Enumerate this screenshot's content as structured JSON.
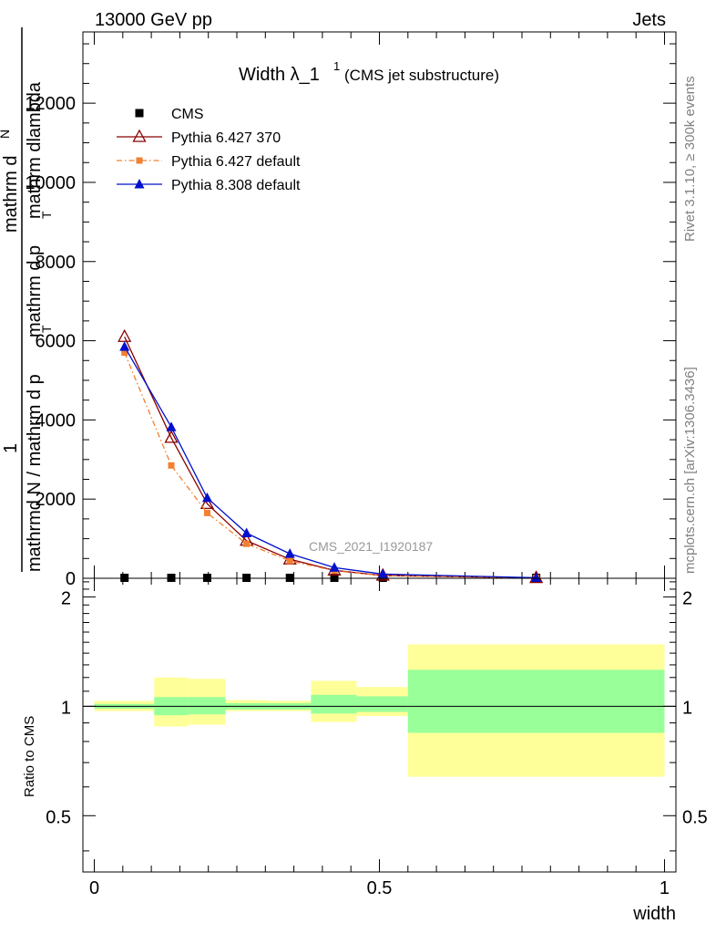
{
  "header": {
    "left": "13000 GeV pp",
    "right": "Jets"
  },
  "side_labels": {
    "rivet": "Rivet 3.1.10, ≥ 300k events",
    "mcplots": "mcplots.cern.ch [arXiv:1306.3436]"
  },
  "watermark": "CMS_2021_I1920187",
  "main_ylabel": {
    "numerator_parts": [
      "1",
      "mathrm d",
      "N"
    ],
    "denominator": "mathrmd N / mathrm d p_T mathrm d p_T mathrm dlambda",
    "lines": [
      "1",
      "mathrm d",
      "N",
      "mathrmd N / mathrm d p",
      "T",
      "mathrm d p",
      "T",
      "mathrm dlambda"
    ]
  },
  "ratio_ylabel": "Ratio to CMS",
  "chart_data": [
    {
      "type": "line",
      "title": "Width λ_1",
      "title_sup": "1",
      "subtitle": "(CMS jet substructure)",
      "xlabel": "width",
      "xlim": [
        -0.02,
        1.02
      ],
      "ylim": [
        0,
        13800
      ],
      "yticks": [
        0,
        2000,
        4000,
        6000,
        8000,
        10000,
        12000
      ],
      "ytick_labels": [
        "0",
        "2000",
        "4000",
        "6000",
        "8000",
        "10000",
        "12000"
      ],
      "legend": [
        {
          "name": "CMS",
          "color": "#000000",
          "marker": "square",
          "dash": "none"
        },
        {
          "name": "Pythia 6.427 370",
          "color": "#8b0000",
          "marker": "open-triangle",
          "dash": "none"
        },
        {
          "name": "Pythia 6.427 default",
          "color": "#f28030",
          "marker": "small-square",
          "dash": "dashdot"
        },
        {
          "name": "Pythia 8.308 default",
          "color": "#0010cc",
          "marker": "triangle",
          "dash": "none"
        }
      ],
      "series": [
        {
          "name": "CMS",
          "x": [
            0.053,
            0.135,
            0.198,
            0.267,
            0.343,
            0.421,
            0.506,
            0.775
          ],
          "y": [
            0,
            0,
            0,
            0,
            0,
            0,
            0,
            0
          ]
        },
        {
          "name": "Pythia 6.427 370",
          "x": [
            0.053,
            0.135,
            0.198,
            0.267,
            0.343,
            0.421,
            0.506,
            0.775
          ],
          "y": [
            6100,
            3550,
            1880,
            950,
            480,
            200,
            70,
            10
          ]
        },
        {
          "name": "Pythia 6.427 default",
          "x": [
            0.053,
            0.135,
            0.198,
            0.267,
            0.343,
            0.421,
            0.506,
            0.775
          ],
          "y": [
            5700,
            2850,
            1650,
            870,
            440,
            190,
            65,
            8
          ]
        },
        {
          "name": "Pythia 8.308 default",
          "x": [
            0.053,
            0.135,
            0.198,
            0.267,
            0.343,
            0.421,
            0.506,
            0.775
          ],
          "y": [
            5850,
            3820,
            2030,
            1140,
            620,
            270,
            105,
            15
          ]
        }
      ]
    },
    {
      "type": "area",
      "title": "Ratio to CMS",
      "xlabel": "width",
      "xlim": [
        -0.02,
        1.02
      ],
      "ylim": [
        0.35,
        2.25
      ],
      "yticks": [
        0.5,
        1,
        2
      ],
      "ytick_labels": [
        "0.5",
        "1",
        "2"
      ],
      "xticks": [
        0,
        0.5,
        1
      ],
      "xtick_labels": [
        "0",
        "0.5",
        "1"
      ],
      "bins": [
        {
          "lo": 0.0,
          "hi": 0.105,
          "yellow": [
            0.97,
            1.035
          ],
          "green": [
            0.985,
            1.015
          ]
        },
        {
          "lo": 0.105,
          "hi": 0.165,
          "yellow": [
            0.88,
            1.2
          ],
          "green": [
            0.945,
            1.06
          ]
        },
        {
          "lo": 0.165,
          "hi": 0.23,
          "yellow": [
            0.89,
            1.19
          ],
          "green": [
            0.95,
            1.06
          ]
        },
        {
          "lo": 0.23,
          "hi": 0.305,
          "yellow": [
            0.97,
            1.04
          ],
          "green": [
            0.98,
            1.02
          ]
        },
        {
          "lo": 0.305,
          "hi": 0.38,
          "yellow": [
            0.97,
            1.035
          ],
          "green": [
            0.98,
            1.02
          ]
        },
        {
          "lo": 0.38,
          "hi": 0.46,
          "yellow": [
            0.905,
            1.175
          ],
          "green": [
            0.955,
            1.075
          ]
        },
        {
          "lo": 0.46,
          "hi": 0.55,
          "yellow": [
            0.94,
            1.13
          ],
          "green": [
            0.965,
            1.065
          ]
        },
        {
          "lo": 0.55,
          "hi": 1.0,
          "yellow": [
            0.64,
            1.48
          ],
          "green": [
            0.845,
            1.26
          ]
        }
      ],
      "reference_line": 1
    }
  ]
}
